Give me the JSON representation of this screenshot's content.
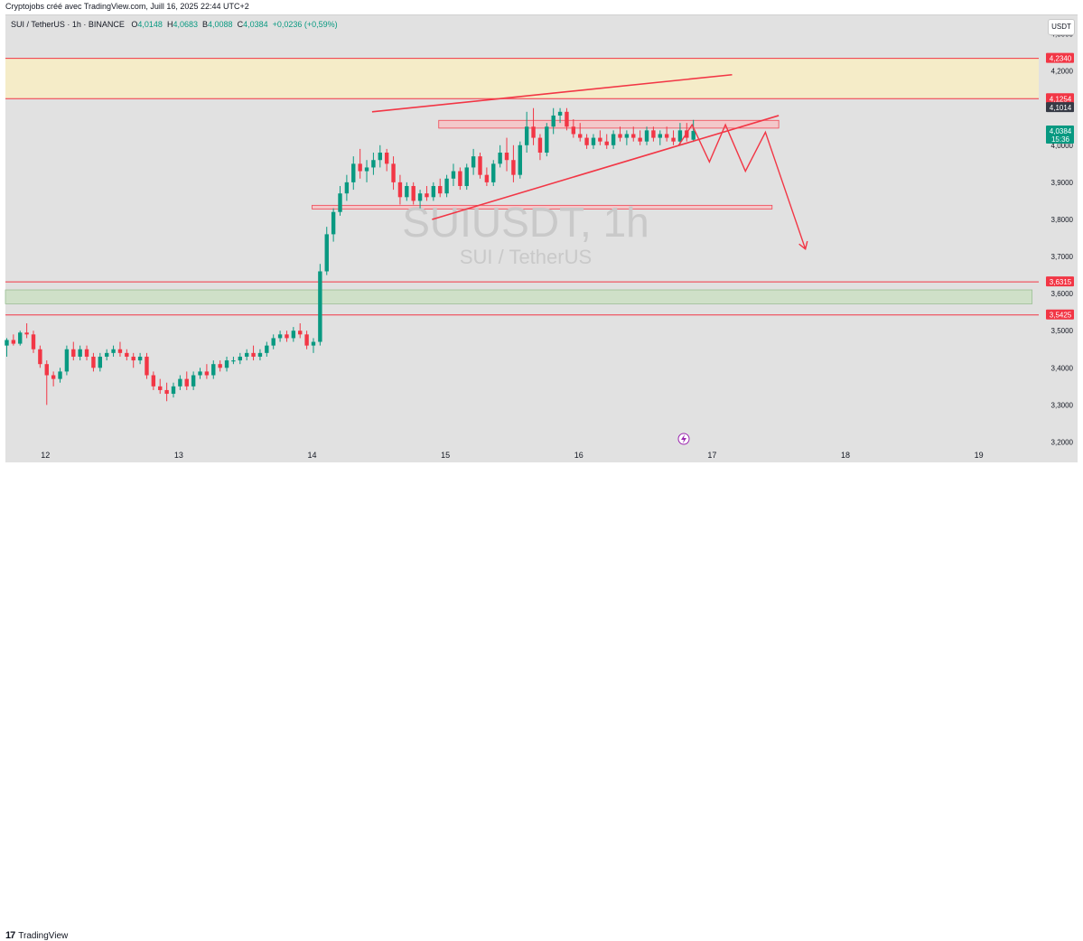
{
  "header": {
    "credit": "Cryptojobs créé avec TradingView.com, Juill 16, 2025 22:44 UTC+2",
    "symbol": "SUI / TetherUS · 1h · BINANCE",
    "open_label": "O",
    "open": "4,0148",
    "high_label": "H",
    "high": "4,0683",
    "low_label": "B",
    "low": "4,0088",
    "close_label": "C",
    "close": "4,0384",
    "change": "+0,0236 (+0,59%)",
    "currency": "USDT"
  },
  "watermark": {
    "title": "SUIUSDT, 1h",
    "subtitle": "SUI / TetherUS"
  },
  "footer": {
    "logo_mark": "17",
    "logo_text": "TradingView"
  },
  "colors": {
    "up": "#089981",
    "down": "#f23645",
    "level": "#f23645",
    "supply_zone": "#f5ecc8",
    "demand_zone": "#cfe0c8",
    "background": "#e1e1e1"
  },
  "chart_data": {
    "type": "candlestick",
    "title": "SUIUSDT, 1h",
    "ylim": [
      3.15,
      4.35
    ],
    "xlim": [
      11.7,
      19.45
    ],
    "x_ticks": [
      "12",
      "13",
      "14",
      "15",
      "16",
      "17",
      "18",
      "19"
    ],
    "y_ticks": [
      "4,3000",
      "4,2000",
      "4,1000",
      "4,0000",
      "3,9000",
      "3,8000",
      "3,7000",
      "3,6000",
      "3,5000",
      "3,4000",
      "3,3000",
      "3,2000"
    ],
    "price_labels": [
      {
        "text": "4,2340",
        "value": 4.234,
        "color": "#f23645"
      },
      {
        "text": "4,1254",
        "value": 4.1254,
        "color": "#f23645"
      },
      {
        "text": "4,1014",
        "value": 4.1014,
        "color": "#363a45"
      },
      {
        "text": "4,0384",
        "extra": "15:36",
        "value": 4.0384,
        "color": "#089981"
      },
      {
        "text": "3,6315",
        "value": 3.6315,
        "color": "#f23645"
      },
      {
        "text": "3,5425",
        "value": 3.5425,
        "color": "#f23645"
      }
    ],
    "horizontal_levels": [
      4.234,
      4.1254,
      3.6315,
      3.5425
    ],
    "zones": [
      {
        "kind": "supply",
        "from": 4.1254,
        "to": 4.234,
        "x0": 11.7,
        "x1": 19.45
      },
      {
        "kind": "demand",
        "from": 3.5725,
        "to": 3.61,
        "x0": 11.7,
        "x1": 19.4
      },
      {
        "kind": "resistance-box",
        "from": 4.046,
        "to": 4.067,
        "x0": 14.95,
        "x1": 17.5
      },
      {
        "kind": "support-box",
        "from": 3.828,
        "to": 3.838,
        "x0": 14.0,
        "x1": 17.45
      }
    ],
    "trendlines": [
      {
        "name": "channel-upper",
        "from": [
          14.45,
          4.09
        ],
        "to": [
          17.15,
          4.19
        ]
      },
      {
        "name": "channel-lower",
        "from": [
          14.9,
          3.8
        ],
        "to": [
          17.5,
          4.08
        ]
      }
    ],
    "projection": [
      [
        16.75,
        4.0
      ],
      [
        16.85,
        4.055
      ],
      [
        16.98,
        3.955
      ],
      [
        17.1,
        4.055
      ],
      [
        17.25,
        3.93
      ],
      [
        17.4,
        4.035
      ],
      [
        17.7,
        3.72
      ]
    ],
    "candles": [
      [
        11.71,
        3.46,
        3.48,
        3.43,
        3.475
      ],
      [
        11.76,
        3.475,
        3.49,
        3.46,
        3.465
      ],
      [
        11.81,
        3.465,
        3.5,
        3.46,
        3.495
      ],
      [
        11.86,
        3.495,
        3.52,
        3.48,
        3.49
      ],
      [
        11.91,
        3.49,
        3.5,
        3.44,
        3.45
      ],
      [
        11.96,
        3.45,
        3.46,
        3.4,
        3.41
      ],
      [
        12.01,
        3.41,
        3.42,
        3.3,
        3.38
      ],
      [
        12.06,
        3.38,
        3.39,
        3.35,
        3.37
      ],
      [
        12.11,
        3.37,
        3.4,
        3.36,
        3.39
      ],
      [
        12.16,
        3.39,
        3.46,
        3.38,
        3.45
      ],
      [
        12.21,
        3.45,
        3.47,
        3.42,
        3.43
      ],
      [
        12.26,
        3.43,
        3.46,
        3.42,
        3.45
      ],
      [
        12.31,
        3.45,
        3.46,
        3.42,
        3.43
      ],
      [
        12.36,
        3.43,
        3.44,
        3.39,
        3.4
      ],
      [
        12.41,
        3.4,
        3.44,
        3.39,
        3.43
      ],
      [
        12.46,
        3.43,
        3.45,
        3.42,
        3.44
      ],
      [
        12.51,
        3.44,
        3.46,
        3.43,
        3.45
      ],
      [
        12.56,
        3.45,
        3.47,
        3.43,
        3.44
      ],
      [
        12.61,
        3.44,
        3.45,
        3.42,
        3.43
      ],
      [
        12.66,
        3.43,
        3.44,
        3.4,
        3.42
      ],
      [
        12.71,
        3.42,
        3.44,
        3.41,
        3.43
      ],
      [
        12.76,
        3.43,
        3.44,
        3.37,
        3.38
      ],
      [
        12.81,
        3.38,
        3.39,
        3.34,
        3.35
      ],
      [
        12.86,
        3.35,
        3.37,
        3.33,
        3.34
      ],
      [
        12.91,
        3.34,
        3.36,
        3.31,
        3.33
      ],
      [
        12.96,
        3.33,
        3.36,
        3.32,
        3.35
      ],
      [
        13.01,
        3.35,
        3.38,
        3.34,
        3.37
      ],
      [
        13.06,
        3.37,
        3.39,
        3.34,
        3.35
      ],
      [
        13.11,
        3.35,
        3.39,
        3.34,
        3.38
      ],
      [
        13.16,
        3.38,
        3.4,
        3.37,
        3.39
      ],
      [
        13.21,
        3.39,
        3.41,
        3.37,
        3.38
      ],
      [
        13.26,
        3.38,
        3.42,
        3.37,
        3.41
      ],
      [
        13.31,
        3.41,
        3.42,
        3.39,
        3.4
      ],
      [
        13.36,
        3.4,
        3.43,
        3.39,
        3.42
      ],
      [
        13.41,
        3.42,
        3.43,
        3.41,
        3.42
      ],
      [
        13.46,
        3.42,
        3.44,
        3.41,
        3.43
      ],
      [
        13.51,
        3.43,
        3.45,
        3.42,
        3.44
      ],
      [
        13.56,
        3.44,
        3.46,
        3.42,
        3.43
      ],
      [
        13.61,
        3.43,
        3.45,
        3.42,
        3.44
      ],
      [
        13.66,
        3.44,
        3.47,
        3.43,
        3.46
      ],
      [
        13.71,
        3.46,
        3.49,
        3.45,
        3.48
      ],
      [
        13.76,
        3.48,
        3.5,
        3.47,
        3.49
      ],
      [
        13.81,
        3.49,
        3.5,
        3.47,
        3.48
      ],
      [
        13.86,
        3.48,
        3.51,
        3.47,
        3.5
      ],
      [
        13.91,
        3.5,
        3.52,
        3.48,
        3.49
      ],
      [
        13.96,
        3.49,
        3.5,
        3.45,
        3.46
      ],
      [
        14.01,
        3.46,
        3.48,
        3.44,
        3.47
      ],
      [
        14.06,
        3.47,
        3.68,
        3.46,
        3.66
      ],
      [
        14.11,
        3.66,
        3.78,
        3.65,
        3.76
      ],
      [
        14.16,
        3.76,
        3.83,
        3.74,
        3.82
      ],
      [
        14.21,
        3.82,
        3.89,
        3.81,
        3.87
      ],
      [
        14.26,
        3.87,
        3.92,
        3.85,
        3.9
      ],
      [
        14.31,
        3.9,
        3.97,
        3.88,
        3.95
      ],
      [
        14.36,
        3.95,
        3.99,
        3.91,
        3.93
      ],
      [
        14.41,
        3.93,
        3.96,
        3.9,
        3.94
      ],
      [
        14.46,
        3.94,
        3.98,
        3.92,
        3.96
      ],
      [
        14.51,
        3.96,
        4.0,
        3.94,
        3.98
      ],
      [
        14.56,
        3.98,
        3.99,
        3.93,
        3.95
      ],
      [
        14.61,
        3.95,
        3.97,
        3.88,
        3.9
      ],
      [
        14.66,
        3.9,
        3.92,
        3.84,
        3.86
      ],
      [
        14.71,
        3.86,
        3.9,
        3.85,
        3.89
      ],
      [
        14.76,
        3.89,
        3.9,
        3.84,
        3.85
      ],
      [
        14.81,
        3.85,
        3.88,
        3.83,
        3.87
      ],
      [
        14.86,
        3.87,
        3.89,
        3.85,
        3.86
      ],
      [
        14.91,
        3.86,
        3.9,
        3.85,
        3.89
      ],
      [
        14.96,
        3.89,
        3.91,
        3.86,
        3.87
      ],
      [
        15.01,
        3.87,
        3.92,
        3.86,
        3.91
      ],
      [
        15.06,
        3.91,
        3.95,
        3.89,
        3.93
      ],
      [
        15.11,
        3.93,
        3.94,
        3.88,
        3.89
      ],
      [
        15.16,
        3.89,
        3.95,
        3.88,
        3.94
      ],
      [
        15.21,
        3.94,
        3.99,
        3.92,
        3.97
      ],
      [
        15.26,
        3.97,
        3.98,
        3.91,
        3.92
      ],
      [
        15.31,
        3.92,
        3.94,
        3.89,
        3.9
      ],
      [
        15.36,
        3.9,
        3.96,
        3.89,
        3.95
      ],
      [
        15.41,
        3.95,
        4.0,
        3.94,
        3.98
      ],
      [
        15.46,
        3.98,
        4.02,
        3.93,
        3.96
      ],
      [
        15.51,
        3.96,
        4.0,
        3.9,
        3.92
      ],
      [
        15.56,
        3.92,
        4.01,
        3.91,
        4.0
      ],
      [
        15.61,
        4.0,
        4.09,
        3.98,
        4.05
      ],
      [
        15.66,
        4.05,
        4.1,
        4.0,
        4.02
      ],
      [
        15.71,
        4.02,
        4.03,
        3.96,
        3.98
      ],
      [
        15.76,
        3.98,
        4.06,
        3.97,
        4.05
      ],
      [
        15.81,
        4.05,
        4.1,
        4.03,
        4.08
      ],
      [
        15.86,
        4.08,
        4.1,
        4.06,
        4.09
      ],
      [
        15.91,
        4.09,
        4.1,
        4.04,
        4.05
      ],
      [
        15.96,
        4.05,
        4.07,
        4.02,
        4.03
      ],
      [
        16.01,
        4.03,
        4.06,
        4.01,
        4.02
      ],
      [
        16.06,
        4.02,
        4.03,
        3.99,
        4.0
      ],
      [
        16.11,
        4.0,
        4.03,
        3.99,
        4.02
      ],
      [
        16.16,
        4.02,
        4.04,
        4.0,
        4.01
      ],
      [
        16.21,
        4.01,
        4.03,
        3.99,
        4.0
      ],
      [
        16.26,
        4.0,
        4.04,
        3.99,
        4.03
      ],
      [
        16.31,
        4.03,
        4.05,
        4.01,
        4.02
      ],
      [
        16.36,
        4.02,
        4.04,
        4.0,
        4.03
      ],
      [
        16.41,
        4.03,
        4.05,
        4.01,
        4.02
      ],
      [
        16.46,
        4.02,
        4.04,
        4.0,
        4.01
      ],
      [
        16.51,
        4.01,
        4.05,
        4.0,
        4.04
      ],
      [
        16.56,
        4.04,
        4.05,
        4.01,
        4.02
      ],
      [
        16.61,
        4.02,
        4.04,
        4.0,
        4.03
      ],
      [
        16.66,
        4.03,
        4.05,
        4.01,
        4.02
      ],
      [
        16.71,
        4.02,
        4.04,
        4.0,
        4.01
      ],
      [
        16.76,
        4.01,
        4.06,
        4.0,
        4.04
      ],
      [
        16.81,
        4.04,
        4.06,
        4.01,
        4.02
      ],
      [
        16.86,
        4.0148,
        4.0683,
        4.0088,
        4.0384
      ]
    ]
  }
}
